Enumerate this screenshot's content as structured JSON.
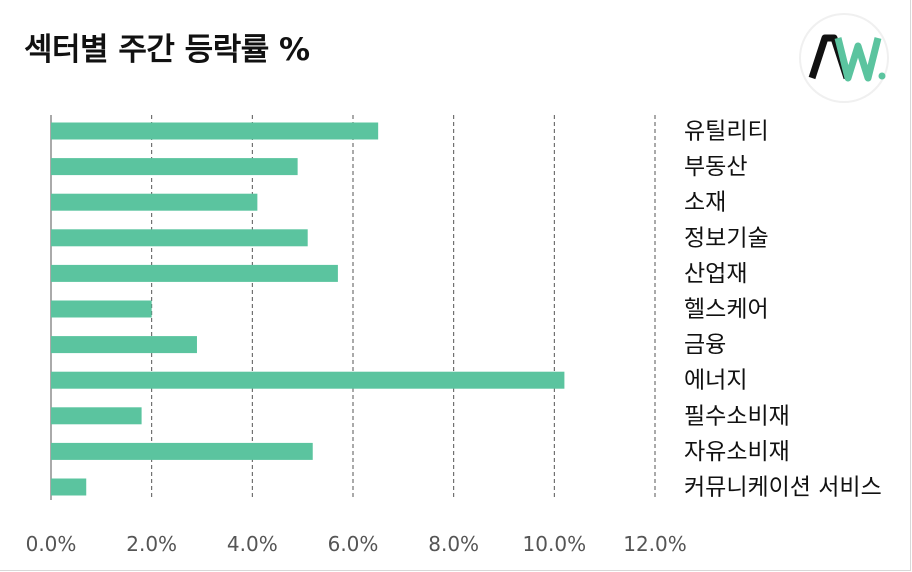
{
  "title": "섹터별 주간 등락률 %",
  "logo": {
    "icon": "aw-logo-icon",
    "text": "AW.",
    "colors": {
      "dark": "#111111",
      "green": "#5bc49f"
    }
  },
  "colors": {
    "bar": "#5bc49f",
    "grid": "#555555",
    "axis": "#555555"
  },
  "chart_data": {
    "type": "bar",
    "orientation": "horizontal",
    "title": "섹터별 주간 등락률 %",
    "categories": [
      "유틸리티",
      "부동산",
      "소재",
      "정보기술",
      "산업재",
      "헬스케어",
      "금융",
      "에너지",
      "필수소비재",
      "자유소비재",
      "커뮤니케이션 서비스"
    ],
    "values": [
      6.5,
      4.9,
      4.1,
      5.1,
      5.7,
      2.0,
      2.9,
      10.2,
      1.8,
      5.2,
      0.7
    ],
    "xlim": [
      0,
      12
    ],
    "xticks": [
      "0.0%",
      "2.0%",
      "4.0%",
      "6.0%",
      "8.0%",
      "10.0%",
      "12.0%"
    ],
    "xlabel": "",
    "ylabel": "",
    "grid": "vertical dashed",
    "category_labels_position": "right"
  }
}
